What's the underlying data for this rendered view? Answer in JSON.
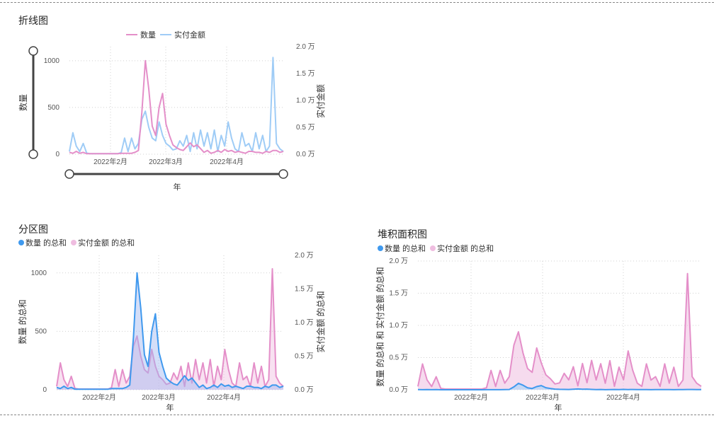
{
  "colors": {
    "pink": "#e48fc9",
    "lightblue": "#9fccf6",
    "blue": "#3f99ee",
    "areaPink": "#efbde0",
    "grid": "#d0d0d0"
  },
  "chart_data": [
    {
      "id": "line",
      "type": "line",
      "title": "折线图",
      "xlabel": "年",
      "ylabel": "数量",
      "y2label": "实付金额",
      "legend_position": "top-center",
      "grid": true,
      "x_tick_labels": [
        "2022年2月",
        "2022年3月",
        "2022年4月"
      ],
      "y_ticks": [
        "0",
        "500",
        "1000"
      ],
      "y2_ticks": [
        "0.0 万",
        "0.5 万",
        "1.0 万",
        "1.5 万",
        "2.0 万"
      ],
      "ylim": [
        0,
        1150
      ],
      "y2lim": [
        0,
        20000
      ],
      "series": [
        {
          "name": "数量",
          "axis": "left",
          "values": [
            20,
            10,
            30,
            10,
            20,
            5,
            5,
            5,
            5,
            5,
            5,
            5,
            5,
            5,
            5,
            10,
            10,
            10,
            10,
            20,
            40,
            450,
            1000,
            700,
            300,
            200,
            500,
            650,
            320,
            200,
            100,
            70,
            50,
            40,
            80,
            120,
            80,
            100,
            60,
            20,
            40,
            10,
            20,
            40,
            20,
            50,
            30,
            40,
            20,
            30,
            20,
            10,
            30,
            30,
            20,
            20,
            10,
            30,
            20,
            40,
            40,
            20,
            30
          ]
        },
        {
          "name": "实付金额",
          "axis": "right",
          "values": [
            500,
            4000,
            1500,
            500,
            2000,
            200,
            100,
            100,
            100,
            100,
            100,
            100,
            100,
            100,
            100,
            300,
            3000,
            500,
            3000,
            1000,
            2000,
            6500,
            8000,
            5000,
            3000,
            2500,
            6000,
            3500,
            2000,
            1500,
            800,
            1000,
            2500,
            1500,
            3500,
            500,
            4000,
            1000,
            4500,
            1500,
            4000,
            1000,
            4500,
            500,
            3500,
            1500,
            6000,
            3000,
            1000,
            500,
            4000,
            1500,
            2000,
            500,
            4000,
            1000,
            3500,
            500,
            1500,
            18000,
            2000,
            1000,
            500
          ]
        }
      ]
    },
    {
      "id": "area1",
      "type": "area",
      "title": "分区图",
      "xlabel": "年",
      "ylabel": "数量 的总和",
      "y2label": "实付金额 的总和",
      "legend_position": "top-left",
      "grid": true,
      "x_tick_labels": [
        "2022年2月",
        "2022年3月",
        "2022年4月"
      ],
      "y_ticks": [
        "0",
        "500",
        "1000"
      ],
      "y2_ticks": [
        "0.0 万",
        "0.5 万",
        "1.0 万",
        "1.5 万",
        "2.0 万"
      ],
      "ylim": [
        0,
        1150
      ],
      "y2lim": [
        0,
        20000
      ],
      "series": [
        {
          "name": "数量 的总和",
          "axis": "left",
          "values": [
            20,
            10,
            30,
            10,
            20,
            5,
            5,
            5,
            5,
            5,
            5,
            5,
            5,
            5,
            5,
            10,
            10,
            10,
            10,
            20,
            40,
            450,
            1000,
            700,
            300,
            200,
            500,
            650,
            320,
            200,
            100,
            70,
            50,
            40,
            80,
            120,
            80,
            100,
            60,
            20,
            40,
            10,
            20,
            40,
            20,
            50,
            30,
            40,
            20,
            30,
            20,
            10,
            30,
            30,
            20,
            20,
            10,
            30,
            20,
            40,
            40,
            20,
            30
          ]
        },
        {
          "name": "实付金额 的总和",
          "axis": "right",
          "values": [
            500,
            4000,
            1500,
            500,
            2000,
            200,
            100,
            100,
            100,
            100,
            100,
            100,
            100,
            100,
            100,
            300,
            3000,
            500,
            3000,
            1000,
            2000,
            6500,
            8000,
            5000,
            3000,
            2500,
            6000,
            3500,
            2000,
            1500,
            800,
            1000,
            2500,
            1500,
            3500,
            500,
            4000,
            1000,
            4500,
            1500,
            4000,
            1000,
            4500,
            500,
            3500,
            1500,
            6000,
            3000,
            1000,
            500,
            4000,
            1500,
            2000,
            500,
            4000,
            1000,
            3500,
            500,
            1500,
            18000,
            2000,
            1000,
            500
          ]
        }
      ]
    },
    {
      "id": "area2",
      "type": "area",
      "stacked": true,
      "title": "堆积面积图",
      "xlabel": "年",
      "ylabel": "数量 的总和 和 实付金额 的总和",
      "legend_position": "top-left",
      "grid": true,
      "x_tick_labels": [
        "2022年2月",
        "2022年3月",
        "2022年4月"
      ],
      "y_ticks": [
        "0.0 万",
        "0.5 万",
        "1.0 万",
        "1.5 万",
        "2.0 万"
      ],
      "ylim": [
        0,
        20000
      ],
      "series": [
        {
          "name": "数量 的总和",
          "values": [
            20,
            10,
            30,
            10,
            20,
            5,
            5,
            5,
            5,
            5,
            5,
            5,
            5,
            5,
            5,
            10,
            10,
            10,
            10,
            20,
            40,
            450,
            1000,
            700,
            300,
            200,
            500,
            650,
            320,
            200,
            100,
            70,
            50,
            40,
            80,
            120,
            80,
            100,
            60,
            20,
            40,
            10,
            20,
            40,
            20,
            50,
            30,
            40,
            20,
            30,
            20,
            10,
            30,
            30,
            20,
            20,
            10,
            30,
            20,
            40,
            40,
            20,
            30
          ]
        },
        {
          "name": "实付金额 的总和",
          "values": [
            500,
            4000,
            1500,
            500,
            2000,
            200,
            100,
            100,
            100,
            100,
            100,
            100,
            100,
            100,
            100,
            300,
            3000,
            500,
            3000,
            1000,
            2000,
            6500,
            8000,
            5000,
            3000,
            2500,
            6000,
            3500,
            2000,
            1500,
            800,
            1000,
            2500,
            1500,
            3500,
            500,
            4000,
            1000,
            4500,
            1500,
            4000,
            1000,
            4500,
            500,
            3500,
            1500,
            6000,
            3000,
            1000,
            500,
            4000,
            1500,
            2000,
            500,
            4000,
            1000,
            3500,
            500,
            1500,
            18000,
            2000,
            1000,
            500
          ]
        }
      ]
    }
  ]
}
